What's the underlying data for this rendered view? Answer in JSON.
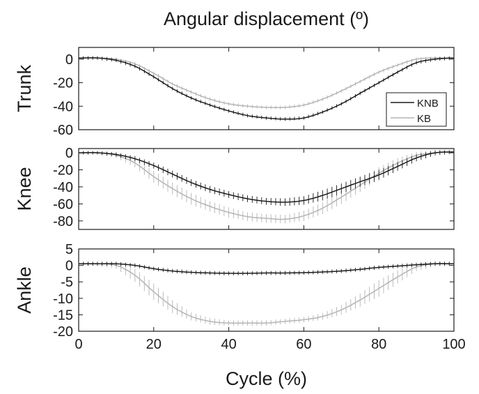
{
  "figure": {
    "title": "Angular displacement (º)",
    "xlabel": "Cycle (%)"
  },
  "chart_data": [
    {
      "type": "line",
      "ylabel": "Trunk",
      "xlim": [
        0,
        100
      ],
      "ylim": [
        -60,
        10
      ],
      "xticks": [
        0,
        20,
        40,
        60,
        80,
        100
      ],
      "yticks": [
        0,
        -20,
        -40,
        -60
      ],
      "legend": {
        "position": "right",
        "entries": [
          "KNB",
          "KB"
        ]
      },
      "x": [
        0,
        5,
        10,
        15,
        20,
        25,
        30,
        35,
        40,
        45,
        50,
        55,
        60,
        65,
        70,
        75,
        80,
        85,
        90,
        95,
        100
      ],
      "series": [
        {
          "name": "KNB",
          "color": "#1a1a1a",
          "values": [
            1,
            1,
            -1,
            -6,
            -15,
            -25,
            -33,
            -39,
            -44,
            -48,
            -50,
            -51,
            -50,
            -45,
            -38,
            -29,
            -20,
            -11,
            -3,
            0,
            1
          ],
          "error": [
            1.5,
            1.5,
            1.5,
            1.5,
            1.5,
            1.5,
            1.5,
            1.5,
            1.5,
            1.5,
            1.5,
            1.5,
            1.5,
            1.5,
            1.5,
            1.5,
            1.5,
            1.5,
            1.5,
            1.5,
            1.5
          ]
        },
        {
          "name": "KB",
          "color": "#b4b4b4",
          "values": [
            1,
            1,
            0,
            -4,
            -12,
            -21,
            -28,
            -34,
            -38,
            -40,
            -41,
            -41,
            -39,
            -34,
            -27,
            -19,
            -11,
            -5,
            0,
            1,
            1
          ],
          "error": [
            1.5,
            1.5,
            1.5,
            1.5,
            1.5,
            1.5,
            1.5,
            1.5,
            1.5,
            1.5,
            1.5,
            1.5,
            1.5,
            1.5,
            1.5,
            1.5,
            1.5,
            1.5,
            1.5,
            1.5,
            1.5
          ]
        }
      ]
    },
    {
      "type": "line",
      "ylabel": "Knee",
      "xlim": [
        0,
        100
      ],
      "ylim": [
        -90,
        5
      ],
      "xticks": [
        0,
        20,
        40,
        60,
        80,
        100
      ],
      "yticks": [
        0,
        -20,
        -40,
        -60,
        -80
      ],
      "x": [
        0,
        5,
        10,
        15,
        20,
        25,
        30,
        35,
        40,
        45,
        50,
        55,
        60,
        65,
        70,
        75,
        80,
        85,
        90,
        95,
        100
      ],
      "series": [
        {
          "name": "KNB",
          "color": "#1a1a1a",
          "values": [
            0,
            0,
            -2,
            -7,
            -15,
            -25,
            -35,
            -43,
            -49,
            -54,
            -57,
            -58,
            -56,
            -50,
            -42,
            -34,
            -26,
            -16,
            -6,
            0,
            1
          ],
          "error": [
            2,
            2,
            2.5,
            3,
            3.5,
            4,
            4,
            4,
            4,
            4,
            4,
            4.5,
            5,
            6,
            6,
            6,
            6,
            5,
            4,
            3,
            2
          ]
        },
        {
          "name": "KB",
          "color": "#b4b4b4",
          "values": [
            0,
            0,
            -3,
            -12,
            -28,
            -42,
            -54,
            -63,
            -70,
            -75,
            -77,
            -78,
            -74,
            -65,
            -52,
            -38,
            -24,
            -12,
            -3,
            0,
            1
          ],
          "error": [
            2,
            2,
            3,
            5,
            7,
            7,
            7,
            6,
            6,
            5,
            5,
            5,
            6,
            7,
            8,
            8,
            7,
            6,
            4,
            3,
            2
          ]
        }
      ]
    },
    {
      "type": "line",
      "ylabel": "Ankle",
      "xlim": [
        0,
        100
      ],
      "ylim": [
        -20,
        5
      ],
      "xticks": [
        0,
        20,
        40,
        60,
        80,
        100
      ],
      "yticks": [
        5,
        0,
        -5,
        -10,
        -15,
        -20
      ],
      "xticklabels": [
        "0",
        "20",
        "40",
        "60",
        "80",
        "100"
      ],
      "x": [
        0,
        5,
        10,
        15,
        20,
        25,
        30,
        35,
        40,
        45,
        50,
        55,
        60,
        65,
        70,
        75,
        80,
        85,
        90,
        95,
        100
      ],
      "series": [
        {
          "name": "KNB",
          "color": "#1a1a1a",
          "values": [
            0.5,
            0.5,
            0.5,
            0,
            -1,
            -1.7,
            -2.1,
            -2.3,
            -2.4,
            -2.4,
            -2.3,
            -2.3,
            -2.2,
            -2,
            -1.7,
            -1.2,
            -0.6,
            -0.2,
            0.2,
            0.5,
            0.5
          ],
          "error": [
            0.6,
            0.6,
            0.6,
            0.6,
            0.6,
            0.6,
            0.6,
            0.6,
            0.6,
            0.6,
            0.6,
            0.6,
            0.6,
            0.6,
            0.6,
            0.6,
            0.6,
            0.6,
            0.6,
            0.6,
            0.6
          ]
        },
        {
          "name": "KB",
          "color": "#b4b4b4",
          "values": [
            0.5,
            0.5,
            0,
            -3,
            -8,
            -12.5,
            -15.5,
            -17,
            -17.5,
            -17.5,
            -17.5,
            -17,
            -16.5,
            -15.5,
            -13.5,
            -10.5,
            -7,
            -3.5,
            -0.5,
            0.5,
            0.5
          ],
          "error": [
            0.6,
            0.6,
            1,
            2,
            2.5,
            2,
            1.2,
            1,
            0.8,
            0.8,
            0.8,
            0.8,
            0.8,
            1,
            1.5,
            2,
            2.5,
            2,
            1.2,
            0.8,
            0.6
          ]
        }
      ]
    }
  ]
}
